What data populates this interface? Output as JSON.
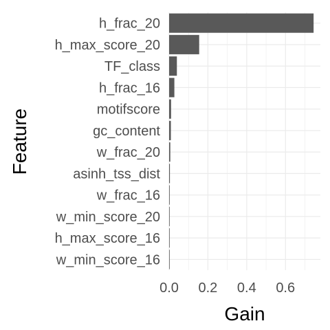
{
  "chart_data": {
    "type": "bar",
    "orientation": "horizontal",
    "categories": [
      "h_frac_20",
      "h_max_score_20",
      "TF_class",
      "h_frac_16",
      "motifscore",
      "gc_content",
      "w_frac_20",
      "asinh_tss_dist",
      "w_frac_16",
      "w_min_score_20",
      "h_max_score_16",
      "w_min_score_16"
    ],
    "values": [
      0.745,
      0.155,
      0.04,
      0.027,
      0.01,
      0.009,
      0.006,
      0.004,
      0.003,
      0.002,
      0.002,
      0.0015
    ],
    "xlabel": "Gain",
    "ylabel": "Feature",
    "xlim": [
      0,
      0.78
    ],
    "xticks": [
      0.0,
      0.2,
      0.4,
      0.6
    ],
    "xtick_labels": [
      "0.0",
      "0.2",
      "0.4",
      "0.6"
    ],
    "grid": true,
    "bar_color": "#595959",
    "grid_color": "#ebebeb"
  }
}
